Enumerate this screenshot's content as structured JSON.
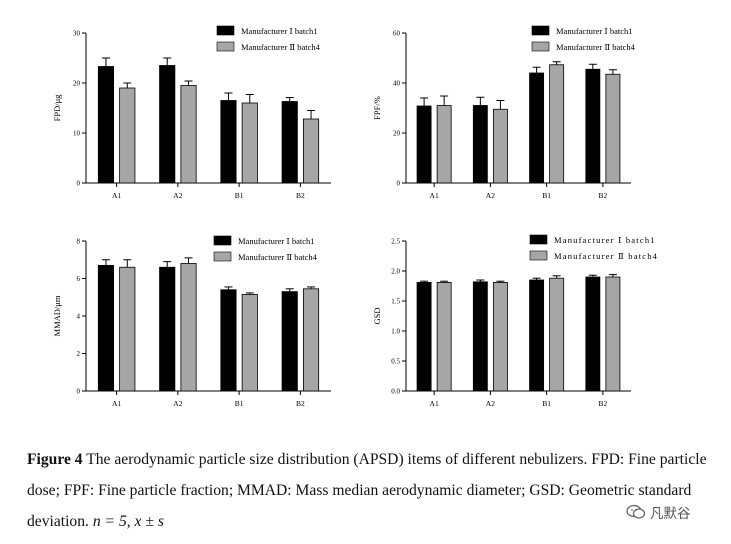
{
  "figure": {
    "caption_label": "Figure 4",
    "caption_text": "The aerodynamic particle size distribution (APSD) items of different nebulizers. FPD: Fine particle dose; FPF: Fine particle fraction; MMAD: Mass median aerodynamic diameter; GSD: Geometric standard deviation.",
    "caption_stats": "n = 5, x ± s",
    "watermark_text": "凡默谷"
  },
  "colors": {
    "series1": "#000000",
    "series2": "#a6a6a6",
    "axis": "#000000"
  },
  "chart_data": [
    {
      "id": "fpd",
      "type": "bar",
      "ylabel": "FPD/μg",
      "ylim": [
        0,
        30
      ],
      "yticks": [
        0,
        10,
        20,
        30
      ],
      "legend_position": "top-right",
      "categories": [
        "A1",
        "A2",
        "B1",
        "B2"
      ],
      "series": [
        {
          "name": "Manufacturer Ⅰ batch1",
          "values": [
            23.3,
            23.5,
            16.5,
            16.3
          ],
          "errors": [
            1.7,
            1.5,
            1.5,
            0.8
          ]
        },
        {
          "name": "Manufacturer Ⅱ batch4",
          "values": [
            19.0,
            19.5,
            16.0,
            12.8
          ],
          "errors": [
            1.0,
            0.9,
            1.7,
            1.7
          ]
        }
      ]
    },
    {
      "id": "fpf",
      "type": "bar",
      "ylabel": "FPF/%",
      "ylim": [
        0,
        60
      ],
      "yticks": [
        0,
        20,
        40,
        60
      ],
      "legend_position": "top-right",
      "categories": [
        "A1",
        "A2",
        "B1",
        "B2"
      ],
      "series": [
        {
          "name": "Manufacturer Ⅰ batch1",
          "values": [
            30.8,
            31.0,
            44.0,
            45.5
          ],
          "errors": [
            3.2,
            3.3,
            2.3,
            2.0
          ]
        },
        {
          "name": "Manufacturer Ⅱ batch4",
          "values": [
            31.0,
            29.5,
            47.3,
            43.5
          ],
          "errors": [
            3.8,
            3.5,
            1.2,
            1.8
          ]
        }
      ]
    },
    {
      "id": "mmad",
      "type": "bar",
      "ylabel": "MMAD/μm",
      "ylim": [
        0,
        8
      ],
      "yticks": [
        0,
        2,
        4,
        6,
        8
      ],
      "legend_position": "top-right",
      "categories": [
        "A1",
        "A2",
        "B1",
        "B2"
      ],
      "series": [
        {
          "name": "Manufacturer Ⅰ batch1",
          "values": [
            6.7,
            6.6,
            5.4,
            5.3
          ],
          "errors": [
            0.3,
            0.3,
            0.15,
            0.15
          ]
        },
        {
          "name": "Manufacturer Ⅱ batch4",
          "values": [
            6.6,
            6.8,
            5.15,
            5.45
          ],
          "errors": [
            0.4,
            0.3,
            0.08,
            0.1
          ]
        }
      ]
    },
    {
      "id": "gsd",
      "type": "bar",
      "ylabel": "GSD",
      "ylim": [
        0,
        2.5
      ],
      "yticks": [
        0,
        0.5,
        1.0,
        1.5,
        2.0,
        2.5
      ],
      "legend_position": "top-right",
      "categories": [
        "A1",
        "A2",
        "B1",
        "B2"
      ],
      "series": [
        {
          "name": "Manufacturer Ⅰ batch1",
          "values": [
            1.81,
            1.82,
            1.85,
            1.9
          ],
          "errors": [
            0.02,
            0.03,
            0.03,
            0.03
          ]
        },
        {
          "name": "Manufacturer Ⅱ batch4",
          "values": [
            1.81,
            1.81,
            1.88,
            1.9
          ],
          "errors": [
            0.02,
            0.02,
            0.04,
            0.04
          ]
        }
      ]
    }
  ]
}
